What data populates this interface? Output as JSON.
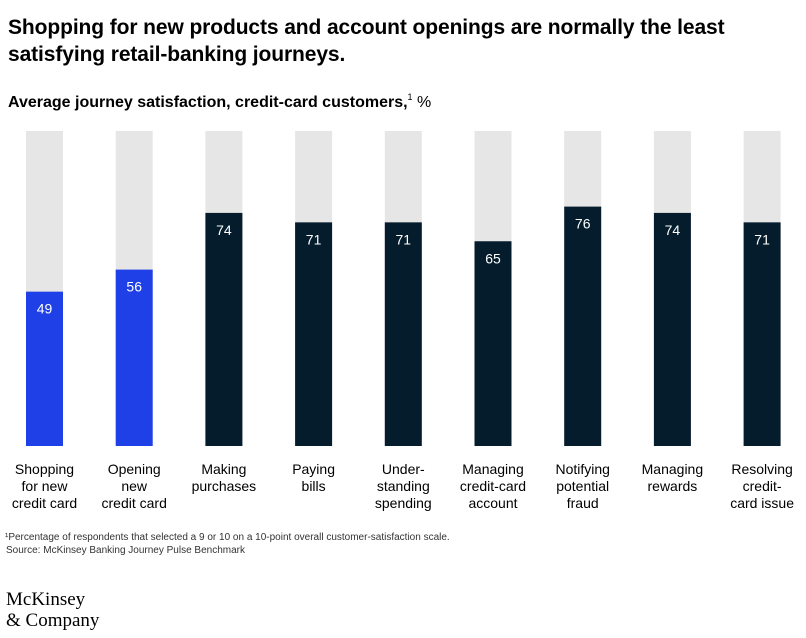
{
  "title": "Shopping for new products and account openings are normally the least satisfying retail-banking journeys.",
  "subtitle": {
    "text": "Average journey satisfaction, credit-card customers,",
    "footnote_mark": "1",
    "unit": "%"
  },
  "footnote": "¹Percentage of respondents that selected a 9 or 10 on a 10-point overall customer-satisfaction scale.",
  "source": "Source: McKinsey Banking Journey Pulse Benchmark",
  "logo": {
    "line1": "McKinsey",
    "line2": "& Company"
  },
  "colors": {
    "highlight": "#1f40e6",
    "primary": "#051c2c",
    "track": "#e6e6e6",
    "label_on_bar": "#ffffff"
  },
  "chart_data": {
    "type": "bar",
    "title": "Average journey satisfaction, credit-card customers, %",
    "xlabel": "",
    "ylabel": "",
    "ylim": [
      0,
      100
    ],
    "grid": false,
    "categories": [
      [
        "Shopping",
        "for new",
        "credit card"
      ],
      [
        "Opening",
        "new",
        "credit card"
      ],
      [
        "Making",
        "purchases"
      ],
      [
        "Paying",
        "bills"
      ],
      [
        "Under-",
        "standing",
        "spending"
      ],
      [
        "Managing",
        "credit-card",
        "account"
      ],
      [
        "Notifying",
        "potential",
        "fraud"
      ],
      [
        "Managing",
        "rewards"
      ],
      [
        "Resolving",
        "credit-",
        "card issue"
      ]
    ],
    "values": [
      49,
      56,
      74,
      71,
      71,
      65,
      76,
      74,
      71
    ],
    "highlighted": [
      true,
      true,
      false,
      false,
      false,
      false,
      false,
      false,
      false
    ]
  }
}
